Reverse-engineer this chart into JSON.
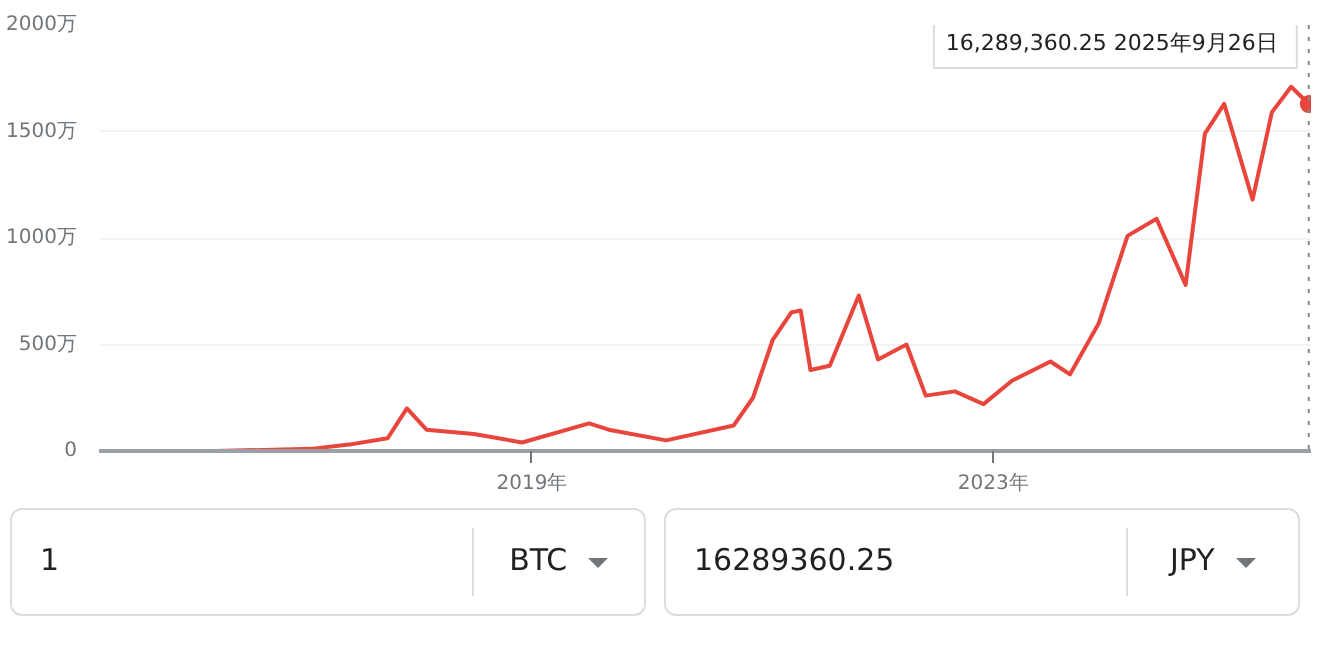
{
  "chart_data": {
    "type": "line",
    "x": [
      "2015-05",
      "2016-04",
      "2017-02",
      "2017-06",
      "2017-10",
      "2017-12",
      "2018-02",
      "2018-07",
      "2018-12",
      "2019-07",
      "2019-09",
      "2020-03",
      "2020-10",
      "2020-12",
      "2021-02",
      "2021-04",
      "2021-05",
      "2021-06",
      "2021-08",
      "2021-11",
      "2022-01",
      "2022-04",
      "2022-06",
      "2022-09",
      "2022-12",
      "2023-03",
      "2023-07",
      "2023-09",
      "2023-12",
      "2024-03",
      "2024-06",
      "2024-09",
      "2024-11",
      "2025-01",
      "2025-04",
      "2025-06",
      "2025-08",
      "2025-09-26"
    ],
    "series": [
      {
        "color": "#e8453c",
        "values": [
          0,
          0,
          10,
          30,
          60,
          200,
          100,
          80,
          40,
          130,
          100,
          50,
          120,
          250,
          520,
          650,
          660,
          380,
          400,
          730,
          430,
          500,
          260,
          280,
          220,
          330,
          420,
          360,
          600,
          1010,
          1090,
          780,
          1490,
          1630,
          1180,
          1590,
          1710,
          1628.936025
        ]
      }
    ],
    "xlim": [
      "2015-04",
      "2025-10-03"
    ],
    "ylim": [
      0,
      2000
    ],
    "xticks": [
      {
        "value": "2019",
        "label": "2019年"
      },
      {
        "value": "2023",
        "label": "2023年"
      }
    ],
    "yticks": [
      0,
      {
        "value": 500,
        "label": "500万"
      },
      {
        "value": 1000,
        "label": "1000万"
      },
      {
        "value": 1500,
        "label": "1500万"
      },
      {
        "value": 2000,
        "label": "2000万"
      }
    ],
    "grid": "y",
    "marker": "none",
    "line_style": "solid",
    "ref_lines": [
      {
        "axis": "x",
        "value": "2025-09-26",
        "label": null,
        "color": "#888888",
        "line_style": "dotted"
      }
    ],
    "annotations": [
      {
        "text": "16,289,360.25  2025年9月26日",
        "x": "2025-09-26",
        "y": 1628.936025
      },
      "1",
      "BTC",
      "16289360.25",
      "JPY"
    ]
  }
}
